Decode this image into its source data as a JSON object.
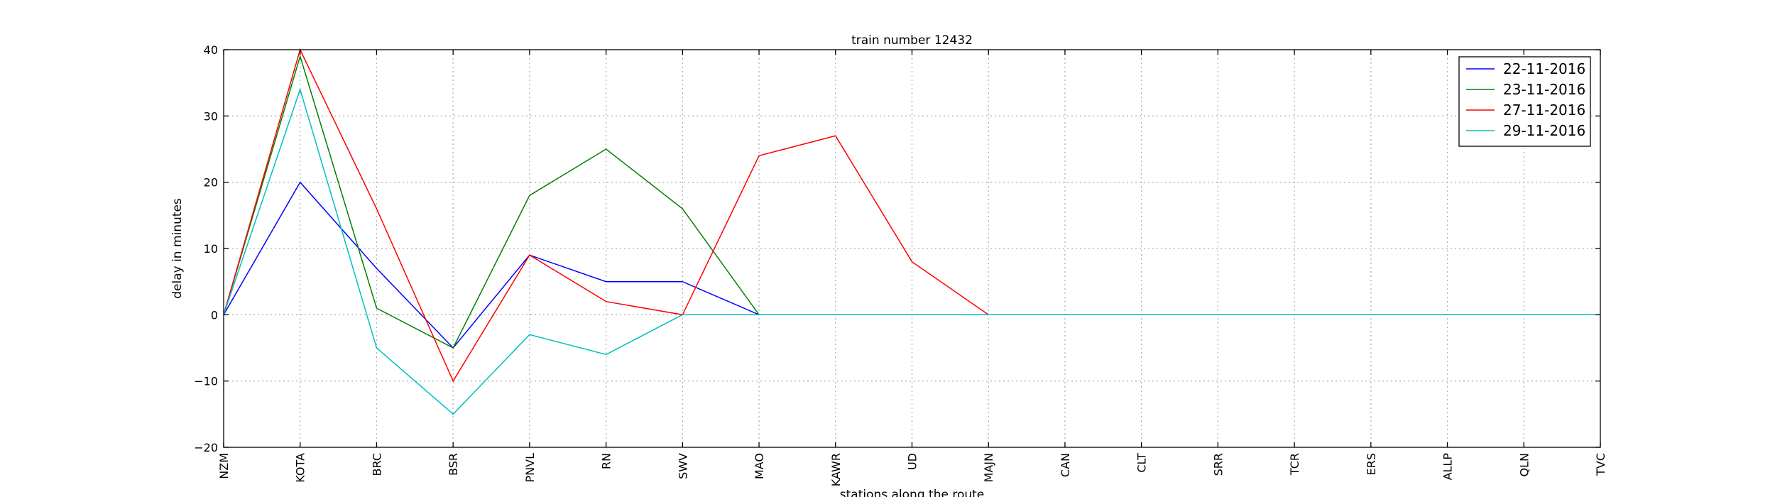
{
  "chart_data": {
    "type": "line",
    "title": "train number 12432",
    "xlabel": "stations along the route",
    "ylabel": "delay in minutes",
    "ylim": [
      -20,
      40
    ],
    "yticks": [
      -20,
      -10,
      0,
      10,
      20,
      30,
      40
    ],
    "ytick_labels": [
      "−20",
      "−10",
      "0",
      "10",
      "20",
      "30",
      "40"
    ],
    "grid": true,
    "legend_position": "top-right",
    "categories": [
      "NZM",
      "KOTA",
      "BRC",
      "BSR",
      "PNVL",
      "RN",
      "SWV",
      "MAO",
      "KAWR",
      "UD",
      "MAJN",
      "CAN",
      "CLT",
      "SRR",
      "TCR",
      "ERS",
      "ALLP",
      "QLN",
      "TVC"
    ],
    "series": [
      {
        "name": "22-11-2016",
        "color": "#0000ff",
        "values": [
          0,
          20,
          7,
          -5,
          9,
          5,
          5,
          0,
          0,
          0,
          0,
          0,
          0,
          0,
          0,
          0,
          0,
          0,
          0
        ]
      },
      {
        "name": "23-11-2016",
        "color": "#008000",
        "values": [
          0,
          39,
          1,
          -5,
          18,
          25,
          16,
          0,
          0,
          0,
          0,
          0,
          0,
          0,
          0,
          0,
          0,
          0,
          0
        ]
      },
      {
        "name": "27-11-2016",
        "color": "#ff0000",
        "values": [
          0,
          40,
          16,
          -10,
          9,
          2,
          0,
          24,
          27,
          8,
          0,
          0,
          0,
          0,
          0,
          0,
          0,
          0,
          0
        ]
      },
      {
        "name": "29-11-2016",
        "color": "#00bfbf",
        "values": [
          0,
          34,
          -5,
          -15,
          -3,
          -6,
          0,
          0,
          0,
          0,
          0,
          0,
          0,
          0,
          0,
          0,
          0,
          0,
          0
        ]
      }
    ]
  }
}
